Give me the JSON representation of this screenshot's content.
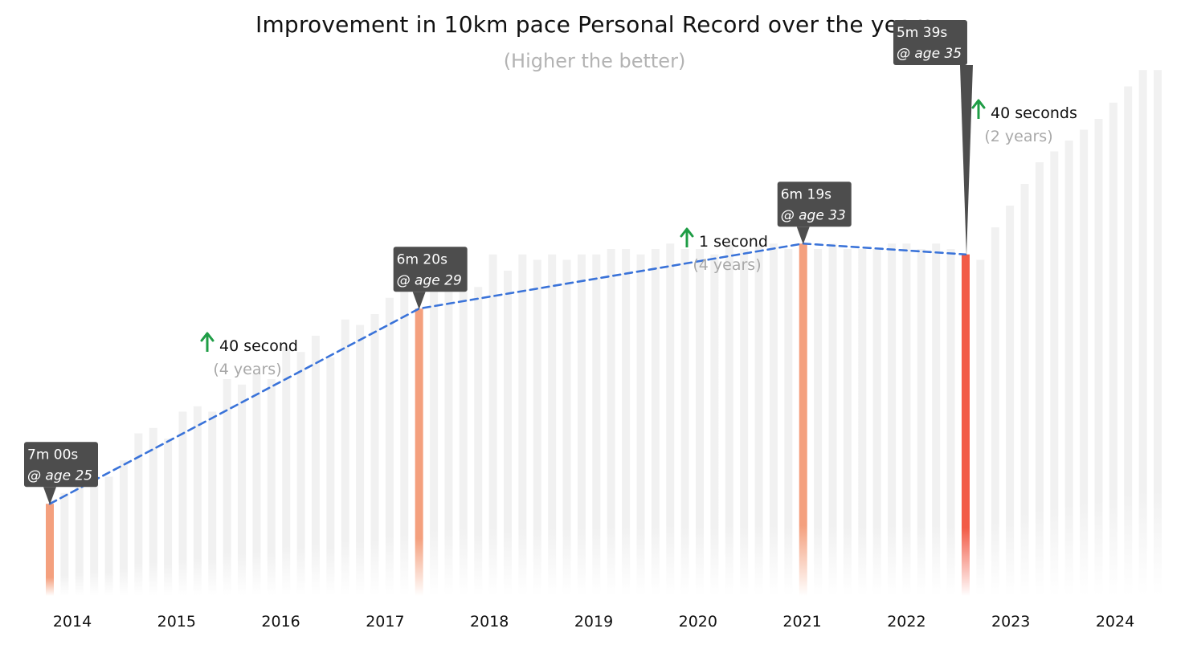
{
  "chart_data": {
    "type": "bar",
    "title": "Improvement in 10km pace Personal Record over the years",
    "subtitle": "(Higher the better)",
    "x_tick_labels": [
      "2014",
      "2015",
      "2016",
      "2017",
      "2018",
      "2019",
      "2020",
      "2021",
      "2022",
      "2023",
      "2024"
    ],
    "bars_relative_height": [
      0.17,
      0.19,
      0.21,
      0.24,
      0.22,
      0.25,
      0.3,
      0.31,
      0.29,
      0.34,
      0.35,
      0.34,
      0.4,
      0.39,
      0.41,
      0.4,
      0.46,
      0.45,
      0.48,
      0.44,
      0.51,
      0.5,
      0.52,
      0.55,
      0.57,
      0.53,
      0.61,
      0.62,
      0.63,
      0.57,
      0.63,
      0.6,
      0.63,
      0.62,
      0.63,
      0.62,
      0.63,
      0.63,
      0.64,
      0.64,
      0.63,
      0.64,
      0.65,
      0.64,
      0.64,
      0.63,
      0.65,
      0.64,
      0.65,
      0.65,
      0.64,
      0.65,
      0.64,
      0.65,
      0.64,
      0.64,
      0.64,
      0.65,
      0.65,
      0.64,
      0.65,
      0.64,
      0.63,
      0.62,
      0.68,
      0.72,
      0.76,
      0.8,
      0.82,
      0.84,
      0.86,
      0.88,
      0.91,
      0.94,
      0.97,
      0.97
    ],
    "highlighted_bars": [
      {
        "bar_index": 0,
        "pace": "7m 00s",
        "age_label": "@ age 25",
        "color": "#F4A07E"
      },
      {
        "bar_index": 25,
        "pace": "6m 20s",
        "age_label": "@ age 29",
        "color": "#F4A07E"
      },
      {
        "bar_index": 51,
        "pace": "6m 19s",
        "age_label": "@ age 33",
        "color": "#F4A07E"
      },
      {
        "bar_index": 62,
        "pace": "5m 39s",
        "age_label": "@ age 35",
        "color": "#F25B47"
      }
    ],
    "annotations": [
      {
        "text": "40 second",
        "sub": "(4 years)"
      },
      {
        "text": "1 second",
        "sub": "(4 years)"
      },
      {
        "text": "40 seconds",
        "sub": "(2 years)"
      }
    ],
    "trend_line": {
      "style": "dashed",
      "color": "#3A73D9"
    },
    "background_bar_color": "#F1F1F1",
    "arrow_color": "#1F9D46",
    "callout_color": "#4D4D4D",
    "grid": false,
    "legend": "none"
  }
}
